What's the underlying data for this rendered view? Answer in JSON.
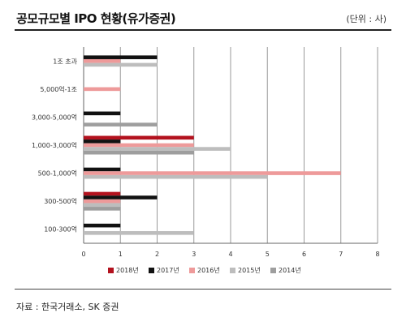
{
  "header": {
    "title": "공모규모별 IPO 현황(유가증권)",
    "unit": "(단위 : 사)"
  },
  "footer": {
    "source": "자료 : 한국거래소, SK 증권"
  },
  "chart_data": {
    "type": "bar",
    "orientation": "horizontal",
    "categories": [
      "1조 초과",
      "5,000억-1조",
      "3,000-5,000억",
      "1,000-3,000억",
      "500-1,000억",
      "300-500억",
      "100-300억"
    ],
    "series": [
      {
        "name": "2018년",
        "color": "#b3121e",
        "values": [
          0,
          0,
          0,
          3,
          0,
          1,
          0
        ]
      },
      {
        "name": "2017년",
        "color": "#111111",
        "values": [
          2,
          0,
          1,
          1,
          1,
          2,
          1
        ]
      },
      {
        "name": "2016년",
        "color": "#ee9a9a",
        "values": [
          1,
          1,
          0,
          3,
          7,
          1,
          0
        ]
      },
      {
        "name": "2015년",
        "color": "#bdbdbd",
        "values": [
          2,
          0,
          0,
          4,
          5,
          1,
          3
        ]
      },
      {
        "name": "2014년",
        "color": "#9e9e9e",
        "values": [
          0,
          0,
          2,
          3,
          0,
          1,
          0
        ]
      }
    ],
    "xlim": [
      0,
      8
    ],
    "xticks": [
      "0",
      "1",
      "2",
      "3",
      "4",
      "5",
      "6",
      "7",
      "8"
    ],
    "grid": true,
    "legend_position": "bottom"
  }
}
